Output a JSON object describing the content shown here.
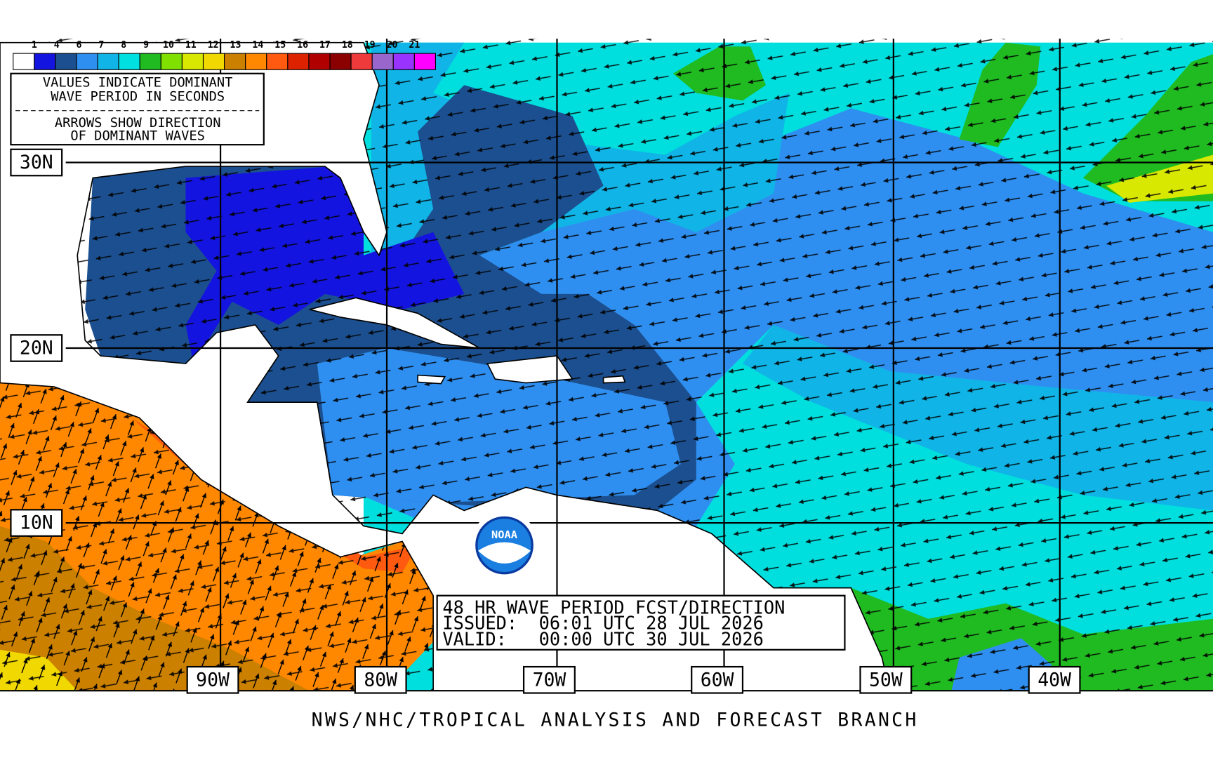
{
  "legend": {
    "labels": [
      "1",
      "4",
      "6",
      "7",
      "8",
      "9",
      "10",
      "11",
      "12",
      "13",
      "14",
      "15",
      "16",
      "17",
      "18",
      "19",
      "20",
      "21"
    ],
    "colors": [
      "#ffffff",
      "#1414e0",
      "#1c4f8f",
      "#2f8ff0",
      "#10b4e6",
      "#00e0e0",
      "#20bb20",
      "#80e000",
      "#d8e800",
      "#f0d800",
      "#cc8000",
      "#ff8800",
      "#ff5a10",
      "#dd2200",
      "#b00000",
      "#8b0000",
      "#ee3a3a",
      "#9966cc",
      "#9933ff",
      "#ff00ff"
    ]
  },
  "notes": [
    "VALUES INDICATE DOMINANT",
    "WAVE PERIOD IN SECONDS",
    "ARROWS SHOW DIRECTION",
    "OF DOMINANT WAVES"
  ],
  "latitude_labels": [
    "30N",
    "20N",
    "10N"
  ],
  "longitude_labels": [
    "90W",
    "80W",
    "70W",
    "60W",
    "50W",
    "40W"
  ],
  "forecast_box": [
    "48 HR WAVE PERIOD FCST/DIRECTION",
    "ISSUED:  06:01 UTC 28 JUL 2026",
    "VALID:   00:00 UTC 30 JUL 2026"
  ],
  "logo": "NOAA",
  "footer": "NWS/NHC/TROPICAL ANALYSIS AND FORECAST BRANCH"
}
